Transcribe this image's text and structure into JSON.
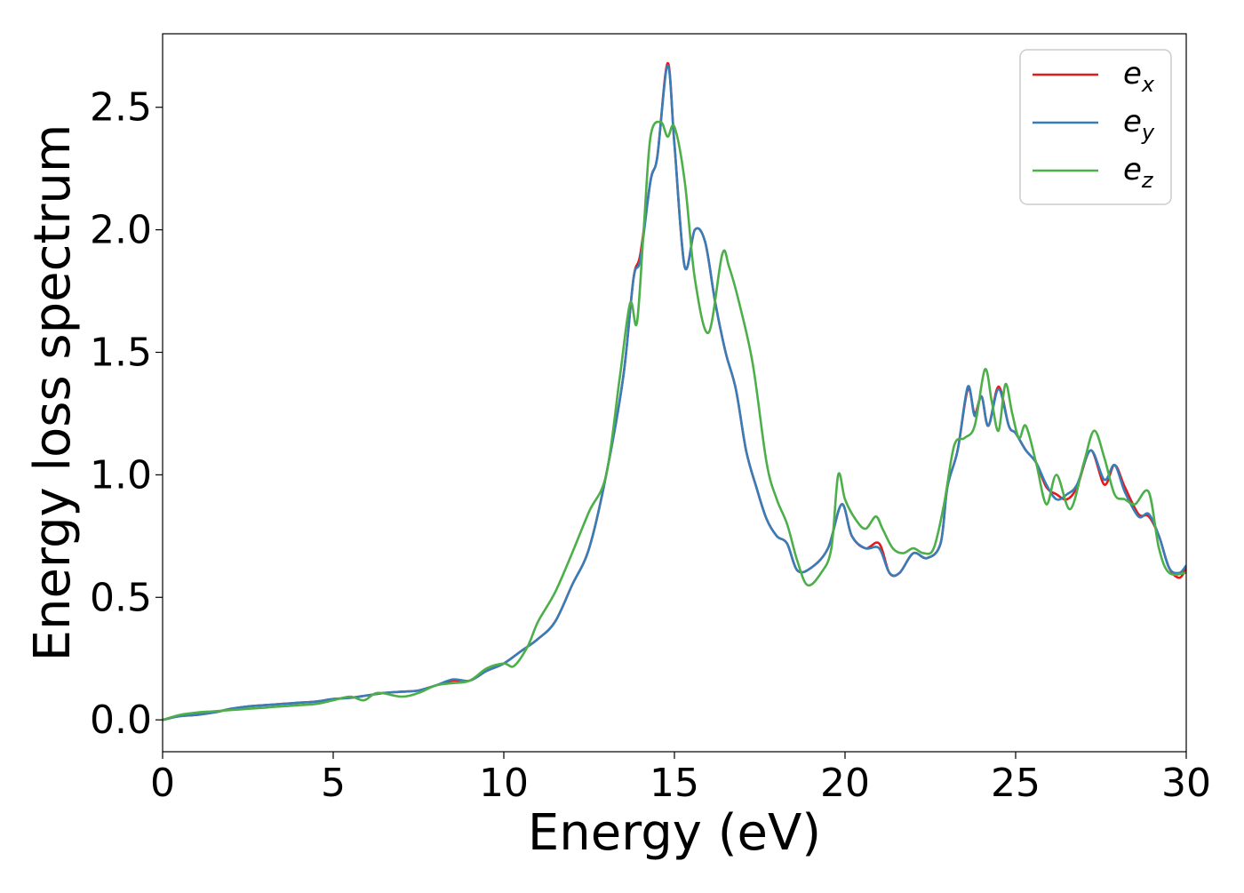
{
  "chart_data": {
    "type": "line",
    "xlabel": "Energy (eV)",
    "ylabel": "Energy loss spectrum",
    "xlim": [
      0,
      30
    ],
    "ylim": [
      -0.13,
      2.8
    ],
    "xticks": [
      0,
      5,
      10,
      15,
      20,
      25,
      30
    ],
    "xtick_labels": [
      "0",
      "5",
      "10",
      "15",
      "20",
      "25",
      "30"
    ],
    "yticks": [
      0.0,
      0.5,
      1.0,
      1.5,
      2.0,
      2.5
    ],
    "ytick_labels": [
      "0.0",
      "0.5",
      "1.0",
      "1.5",
      "2.0",
      "2.5"
    ],
    "grid": false,
    "legend_position": "top-right",
    "series": [
      {
        "name": "e_x",
        "label_base": "e",
        "label_sub": "x",
        "color": "#e41a1c",
        "x": [
          0,
          0.5,
          1,
          1.5,
          2,
          2.5,
          3,
          3.5,
          4,
          4.5,
          5,
          5.5,
          6,
          6.5,
          7,
          7.5,
          8,
          8.5,
          9,
          9.5,
          10,
          10.5,
          11,
          11.5,
          12,
          12.5,
          13,
          13.5,
          13.8,
          14,
          14.3,
          14.5,
          14.8,
          15,
          15.3,
          15.6,
          15.9,
          16.2,
          16.5,
          16.8,
          17.1,
          17.4,
          17.7,
          18,
          18.3,
          18.6,
          19,
          19.5,
          19.9,
          20.2,
          20.6,
          21,
          21.3,
          21.6,
          22,
          22.4,
          22.8,
          23,
          23.3,
          23.6,
          23.8,
          24,
          24.2,
          24.5,
          24.8,
          25,
          25.3,
          25.6,
          25.9,
          26.2,
          26.5,
          26.8,
          27.2,
          27.6,
          27.9,
          28.2,
          28.6,
          28.9,
          29.2,
          29.5,
          29.8,
          30
        ],
        "y": [
          0.0,
          0.015,
          0.02,
          0.03,
          0.045,
          0.055,
          0.06,
          0.065,
          0.07,
          0.075,
          0.085,
          0.09,
          0.1,
          0.11,
          0.115,
          0.12,
          0.14,
          0.16,
          0.16,
          0.2,
          0.23,
          0.28,
          0.33,
          0.4,
          0.55,
          0.7,
          1.0,
          1.4,
          1.8,
          1.9,
          2.2,
          2.3,
          2.68,
          2.35,
          1.85,
          2.0,
          1.95,
          1.7,
          1.5,
          1.35,
          1.1,
          0.95,
          0.82,
          0.75,
          0.72,
          0.61,
          0.62,
          0.7,
          0.88,
          0.75,
          0.7,
          0.72,
          0.6,
          0.6,
          0.68,
          0.66,
          0.72,
          0.95,
          1.1,
          1.35,
          1.25,
          1.32,
          1.2,
          1.36,
          1.2,
          1.17,
          1.1,
          1.05,
          0.95,
          0.92,
          0.9,
          0.95,
          1.1,
          0.96,
          1.04,
          0.95,
          0.84,
          0.83,
          0.75,
          0.62,
          0.58,
          0.62
        ]
      },
      {
        "name": "e_y",
        "label_base": "e",
        "label_sub": "y",
        "color": "#377eb8",
        "x": [
          0,
          0.5,
          1,
          1.5,
          2,
          2.5,
          3,
          3.5,
          4,
          4.5,
          5,
          5.5,
          6,
          6.5,
          7,
          7.5,
          8,
          8.5,
          9,
          9.5,
          10,
          10.5,
          11,
          11.5,
          12,
          12.5,
          13,
          13.5,
          13.8,
          14,
          14.3,
          14.5,
          14.8,
          15,
          15.3,
          15.6,
          15.9,
          16.2,
          16.5,
          16.8,
          17.1,
          17.4,
          17.7,
          18,
          18.3,
          18.6,
          19,
          19.5,
          19.9,
          20.2,
          20.6,
          21,
          21.3,
          21.6,
          22,
          22.4,
          22.8,
          23,
          23.3,
          23.6,
          23.8,
          24,
          24.2,
          24.5,
          24.8,
          25,
          25.3,
          25.6,
          25.9,
          26.2,
          26.5,
          26.8,
          27.2,
          27.6,
          27.9,
          28.2,
          28.6,
          28.9,
          29.2,
          29.5,
          29.8,
          30
        ],
        "y": [
          0.0,
          0.015,
          0.02,
          0.03,
          0.045,
          0.055,
          0.06,
          0.065,
          0.07,
          0.075,
          0.085,
          0.09,
          0.1,
          0.11,
          0.115,
          0.12,
          0.14,
          0.165,
          0.16,
          0.2,
          0.23,
          0.28,
          0.33,
          0.4,
          0.55,
          0.7,
          1.0,
          1.4,
          1.8,
          1.88,
          2.2,
          2.3,
          2.67,
          2.35,
          1.85,
          2.0,
          1.95,
          1.7,
          1.5,
          1.35,
          1.1,
          0.95,
          0.82,
          0.75,
          0.72,
          0.61,
          0.62,
          0.7,
          0.88,
          0.75,
          0.7,
          0.7,
          0.6,
          0.6,
          0.68,
          0.66,
          0.72,
          0.95,
          1.1,
          1.36,
          1.24,
          1.32,
          1.2,
          1.35,
          1.2,
          1.17,
          1.1,
          1.05,
          0.96,
          0.9,
          0.92,
          0.96,
          1.1,
          0.98,
          1.04,
          0.93,
          0.83,
          0.84,
          0.75,
          0.62,
          0.6,
          0.63
        ]
      },
      {
        "name": "e_z",
        "label_base": "e",
        "label_sub": "z",
        "color": "#4daf4a",
        "x": [
          0,
          0.5,
          1,
          1.5,
          2,
          2.5,
          3,
          3.5,
          4,
          4.5,
          5,
          5.5,
          5.9,
          6.3,
          7,
          7.5,
          8,
          8.5,
          9,
          9.5,
          10,
          10.3,
          10.7,
          11,
          11.5,
          12,
          12.5,
          13,
          13.4,
          13.7,
          13.9,
          14.1,
          14.3,
          14.6,
          14.8,
          15,
          15.3,
          15.6,
          16,
          16.4,
          16.6,
          16.9,
          17.3,
          17.7,
          18,
          18.3,
          18.6,
          18.9,
          19.3,
          19.6,
          19.8,
          20,
          20.3,
          20.6,
          20.9,
          21.1,
          21.4,
          21.7,
          22,
          22.3,
          22.6,
          22.9,
          23.2,
          23.5,
          23.8,
          24.1,
          24.3,
          24.5,
          24.7,
          24.9,
          25.1,
          25.3,
          25.6,
          25.9,
          26.2,
          26.6,
          27,
          27.3,
          27.6,
          27.9,
          28.2,
          28.5,
          28.9,
          29.2,
          29.5,
          30
        ],
        "y": [
          0.0,
          0.02,
          0.03,
          0.035,
          0.04,
          0.045,
          0.05,
          0.055,
          0.06,
          0.065,
          0.08,
          0.095,
          0.08,
          0.11,
          0.095,
          0.11,
          0.14,
          0.15,
          0.16,
          0.21,
          0.23,
          0.22,
          0.3,
          0.4,
          0.52,
          0.68,
          0.85,
          1.0,
          1.4,
          1.7,
          1.62,
          2.0,
          2.38,
          2.44,
          2.38,
          2.42,
          2.2,
          1.8,
          1.58,
          1.9,
          1.85,
          1.7,
          1.45,
          1.05,
          0.9,
          0.8,
          0.65,
          0.55,
          0.6,
          0.7,
          1.0,
          0.9,
          0.82,
          0.78,
          0.83,
          0.78,
          0.7,
          0.68,
          0.7,
          0.68,
          0.7,
          0.88,
          1.12,
          1.15,
          1.2,
          1.43,
          1.3,
          1.18,
          1.37,
          1.25,
          1.15,
          1.2,
          1.05,
          0.88,
          1.0,
          0.86,
          1.05,
          1.18,
          1.07,
          0.92,
          0.9,
          0.88,
          0.93,
          0.7,
          0.6,
          0.6
        ]
      }
    ]
  }
}
